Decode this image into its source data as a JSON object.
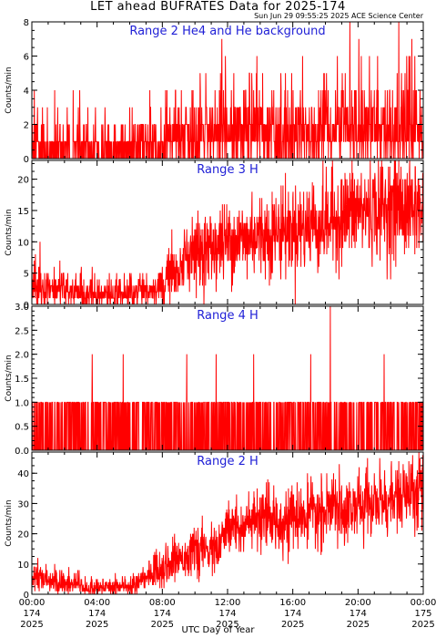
{
  "header": {
    "title": "LET ahead BUFRATES Data for 2025-174",
    "timestamp": "Sun Jun 29 09:55:25 2025 ACE Science Center"
  },
  "footer": {
    "xlabel": "UTC Day of Year"
  },
  "colors": {
    "trace": "#ff0000",
    "panel_title": "#1f1fd6",
    "axes": "#000000"
  },
  "chart_data": [
    {
      "type": "line",
      "title": "Range 2 He4 and He background",
      "ylabel": "Counts/min",
      "ylim": [
        0,
        8
      ],
      "yticks": [
        0,
        2,
        4,
        6,
        8
      ],
      "xlim": [
        0,
        24
      ],
      "x_unit": "hours UTC, day 174 of 2025",
      "profile": [
        [
          0,
          0.6
        ],
        [
          8,
          0.8
        ],
        [
          9,
          1.6
        ],
        [
          24,
          2.0
        ]
      ],
      "spikes": [
        [
          1.4,
          4
        ],
        [
          7.6,
          2
        ],
        [
          19.5,
          8
        ],
        [
          21.2,
          6
        ],
        [
          22.5,
          8
        ],
        [
          23.3,
          7
        ]
      ]
    },
    {
      "type": "line",
      "title": "Range 3 H",
      "ylabel": "Counts/min",
      "ylim": [
        0,
        23
      ],
      "yticks": [
        0,
        5,
        10,
        15,
        20
      ],
      "xlim": [
        0,
        24
      ],
      "profile": [
        [
          0,
          3
        ],
        [
          2,
          2.5
        ],
        [
          4,
          1.5
        ],
        [
          6,
          2
        ],
        [
          8,
          3
        ],
        [
          9,
          6.5
        ],
        [
          10,
          8
        ],
        [
          12,
          10
        ],
        [
          14,
          11
        ],
        [
          16,
          12
        ],
        [
          18,
          13
        ],
        [
          20,
          15
        ],
        [
          22,
          15.5
        ],
        [
          24,
          15
        ]
      ],
      "spikes": [
        [
          0.5,
          10
        ],
        [
          13.5,
          18
        ],
        [
          15.4,
          19
        ],
        [
          17.2,
          19.5
        ],
        [
          19.5,
          21
        ],
        [
          22.5,
          23
        ],
        [
          23.5,
          22
        ]
      ]
    },
    {
      "type": "line",
      "title": "Range 4 H",
      "ylabel": "Counts/min",
      "ylim": [
        0,
        3
      ],
      "yticks": [
        0.0,
        0.5,
        1.0,
        1.5,
        2.0,
        2.5,
        3.0
      ],
      "xlim": [
        0,
        24
      ],
      "values_discrete": [
        0,
        1
      ],
      "spikes": [
        [
          3.7,
          2
        ],
        [
          5.6,
          2
        ],
        [
          9.5,
          2
        ],
        [
          11.3,
          2
        ],
        [
          13.6,
          2
        ],
        [
          17.1,
          2
        ],
        [
          18.3,
          3
        ],
        [
          21.6,
          2
        ]
      ]
    },
    {
      "type": "line",
      "title": "Range 2 H",
      "ylabel": "Counts/min",
      "ylim": [
        0,
        47
      ],
      "yticks": [
        0,
        10,
        20,
        30,
        40
      ],
      "xlim": [
        0,
        24
      ],
      "profile": [
        [
          0,
          6
        ],
        [
          2,
          4
        ],
        [
          4,
          2
        ],
        [
          6,
          3
        ],
        [
          7,
          6
        ],
        [
          8,
          9
        ],
        [
          9,
          12
        ],
        [
          10,
          14
        ],
        [
          11.5,
          15
        ],
        [
          12,
          22
        ],
        [
          14,
          24
        ],
        [
          16,
          25
        ],
        [
          18,
          27
        ],
        [
          20,
          29
        ],
        [
          22,
          31
        ],
        [
          24,
          34
        ]
      ],
      "spikes": [
        [
          18.5,
          40
        ],
        [
          20.5,
          42
        ],
        [
          22.5,
          44
        ],
        [
          23.8,
          45
        ]
      ]
    }
  ],
  "x_axis": {
    "ticks": [
      {
        "time": "00:00",
        "day": "174",
        "year": "2025"
      },
      {
        "time": "04:00",
        "day": "174",
        "year": "2025"
      },
      {
        "time": "08:00",
        "day": "174",
        "year": "2025"
      },
      {
        "time": "12:00",
        "day": "174",
        "year": "2025"
      },
      {
        "time": "16:00",
        "day": "174",
        "year": "2025"
      },
      {
        "time": "20:00",
        "day": "174",
        "year": "2025"
      },
      {
        "time": "00:00",
        "day": "175",
        "year": "2025"
      }
    ]
  }
}
